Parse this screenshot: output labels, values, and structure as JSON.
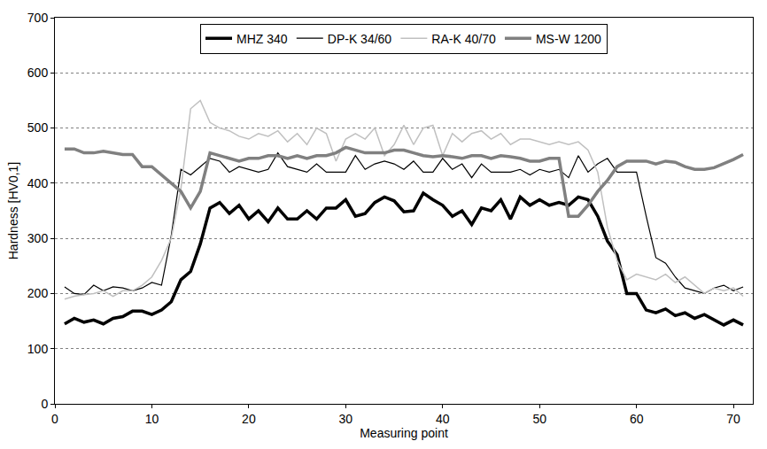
{
  "chart_data": {
    "type": "line",
    "x_label": "Measuring point",
    "y_label": "Hardness [HV0,1]",
    "x": [
      1,
      2,
      3,
      4,
      5,
      6,
      7,
      8,
      9,
      10,
      11,
      12,
      13,
      14,
      15,
      16,
      17,
      18,
      19,
      20,
      21,
      22,
      23,
      24,
      25,
      26,
      27,
      28,
      29,
      30,
      31,
      32,
      33,
      34,
      35,
      36,
      37,
      38,
      39,
      40,
      41,
      42,
      43,
      44,
      45,
      46,
      47,
      48,
      49,
      50,
      51,
      52,
      53,
      54,
      55,
      56,
      57,
      58,
      59,
      60,
      61,
      62,
      63,
      64,
      65,
      66,
      67,
      68,
      69,
      70,
      71
    ],
    "xlim": [
      0,
      72
    ],
    "xticks": [
      0,
      10,
      20,
      30,
      40,
      50,
      60,
      70
    ],
    "ylim": [
      0,
      700
    ],
    "yticks": [
      0,
      100,
      200,
      300,
      400,
      500,
      600,
      700
    ],
    "grid": true,
    "legend": "top",
    "series": [
      {
        "name": "MHZ 340",
        "color": "#000000",
        "values": [
          145,
          155,
          148,
          152,
          145,
          155,
          158,
          168,
          168,
          162,
          170,
          185,
          225,
          240,
          290,
          355,
          365,
          345,
          360,
          335,
          350,
          330,
          355,
          335,
          335,
          350,
          335,
          355,
          355,
          370,
          340,
          345,
          365,
          375,
          368,
          348,
          350,
          382,
          370,
          360,
          340,
          350,
          325,
          355,
          350,
          370,
          335,
          375,
          360,
          370,
          360,
          365,
          360,
          375,
          370,
          340,
          295,
          270,
          200,
          200,
          170,
          165,
          172,
          160,
          165,
          155,
          162,
          152,
          143,
          152,
          143
        ]
      },
      {
        "name": "DP-K 34/60",
        "color": "#000000",
        "values": [
          212,
          200,
          198,
          215,
          205,
          212,
          210,
          205,
          210,
          220,
          215,
          305,
          425,
          415,
          430,
          445,
          440,
          420,
          430,
          425,
          420,
          425,
          455,
          430,
          425,
          420,
          435,
          420,
          420,
          420,
          450,
          425,
          435,
          440,
          435,
          425,
          440,
          420,
          420,
          445,
          425,
          435,
          410,
          435,
          420,
          420,
          420,
          425,
          415,
          425,
          420,
          425,
          410,
          450,
          420,
          435,
          445,
          420,
          420,
          420,
          340,
          265,
          255,
          230,
          210,
          205,
          200,
          210,
          215,
          205,
          212
        ]
      },
      {
        "name": "RA-K 40/70",
        "color": "#c0c0c0",
        "values": [
          190,
          195,
          198,
          200,
          205,
          195,
          205,
          205,
          215,
          230,
          260,
          300,
          390,
          535,
          550,
          510,
          500,
          495,
          485,
          480,
          490,
          485,
          495,
          475,
          490,
          470,
          500,
          490,
          440,
          480,
          490,
          480,
          500,
          450,
          470,
          505,
          470,
          500,
          505,
          450,
          490,
          475,
          490,
          495,
          480,
          490,
          470,
          480,
          480,
          475,
          470,
          475,
          470,
          475,
          460,
          420,
          320,
          260,
          225,
          235,
          230,
          225,
          235,
          220,
          230,
          215,
          200,
          210,
          205,
          210,
          195
        ]
      },
      {
        "name": "MS-W 1200",
        "color": "#808080",
        "values": [
          462,
          462,
          455,
          455,
          458,
          455,
          452,
          452,
          430,
          430,
          415,
          400,
          385,
          355,
          385,
          455,
          450,
          445,
          440,
          445,
          445,
          450,
          450,
          445,
          450,
          445,
          450,
          450,
          455,
          465,
          460,
          455,
          455,
          455,
          460,
          460,
          455,
          450,
          448,
          450,
          448,
          445,
          450,
          450,
          445,
          450,
          448,
          445,
          440,
          440,
          445,
          445,
          340,
          340,
          360,
          385,
          405,
          430,
          440,
          440,
          440,
          435,
          440,
          438,
          430,
          425,
          425,
          428,
          435,
          443,
          452
        ]
      }
    ]
  }
}
